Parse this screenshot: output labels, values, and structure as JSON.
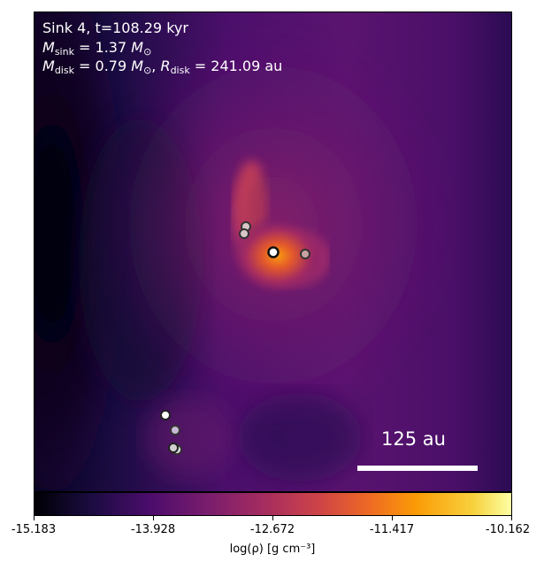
{
  "annotation": {
    "line1": "Sink 4, t=108.29 kyr",
    "msink_symbol": "M",
    "msink_sub": "sink",
    "msink_value": " = 1.37 ",
    "msun_symbol": "M",
    "msun_sub": "⊙",
    "mdisk_symbol": "M",
    "mdisk_sub": "disk",
    "mdisk_value": " = 0.79 ",
    "rdisk_symbol": "R",
    "rdisk_sub": "disk",
    "rdisk_value": " = 241.09 au"
  },
  "scale_bar": {
    "label": "125 au"
  },
  "colorbar": {
    "ticks": [
      "-15.183",
      "-13.928",
      "-12.672",
      "-11.417",
      "-10.162"
    ],
    "label": "log(ρ) [g cm⁻³]",
    "colormap": "inferno"
  },
  "sinks": [
    {
      "name": "sink-primary",
      "fill": "#ffffff"
    },
    {
      "name": "sink-upper-a",
      "fill": "#d9c7c7"
    },
    {
      "name": "sink-upper-b",
      "fill": "#d9c7c7"
    },
    {
      "name": "sink-right",
      "fill": "#c9a0a0"
    },
    {
      "name": "sink-lower-a",
      "fill": "#ffffff"
    },
    {
      "name": "sink-lower-b",
      "fill": "#c9b9d6"
    },
    {
      "name": "sink-lower-c",
      "fill": "#e0e0e0"
    },
    {
      "name": "sink-lower-d",
      "fill": "#cfcfcf"
    }
  ]
}
